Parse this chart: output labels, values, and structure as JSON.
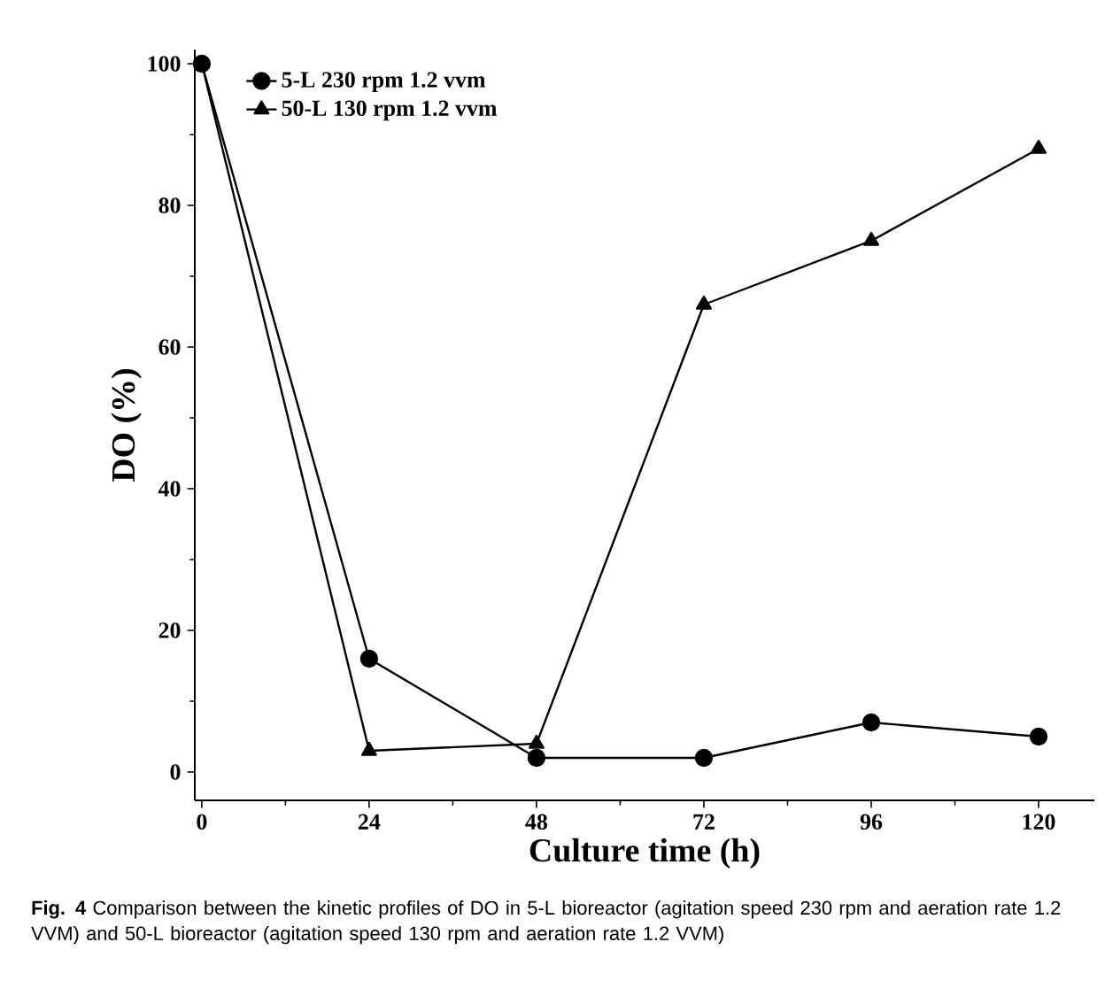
{
  "chart_data": {
    "type": "line",
    "xlabel": "Culture time (h)",
    "ylabel": "DO (%)",
    "x": [
      0,
      24,
      48,
      72,
      96,
      120
    ],
    "series": [
      {
        "name": "5-L  230 rpm 1.2 vvm",
        "color": "#000000",
        "marker": "circle",
        "values": [
          100,
          16,
          2,
          2,
          7,
          5
        ]
      },
      {
        "name": "50-L 130 rpm 1.2 vvm",
        "color": "#000000",
        "marker": "triangle",
        "values": [
          100,
          3,
          4,
          66,
          75,
          88
        ]
      }
    ],
    "xlim": [
      -1,
      128
    ],
    "ylim": [
      -4,
      102
    ],
    "xticks": [
      0,
      24,
      48,
      72,
      96,
      120
    ],
    "yticks": [
      0,
      20,
      40,
      60,
      80,
      100
    ],
    "legend": "top left",
    "grid": false,
    "line_style": "solid",
    "annotations": [
      "**Fig. 4**  Comparison between the kinetic profiles of DO in 5-L bioreactor (agitation speed 230 rpm and aeration rate 1.2 VVM) and 50-L bioreactor (agitation speed 130 rpm and aeration rate 1.2 VVM)"
    ]
  }
}
